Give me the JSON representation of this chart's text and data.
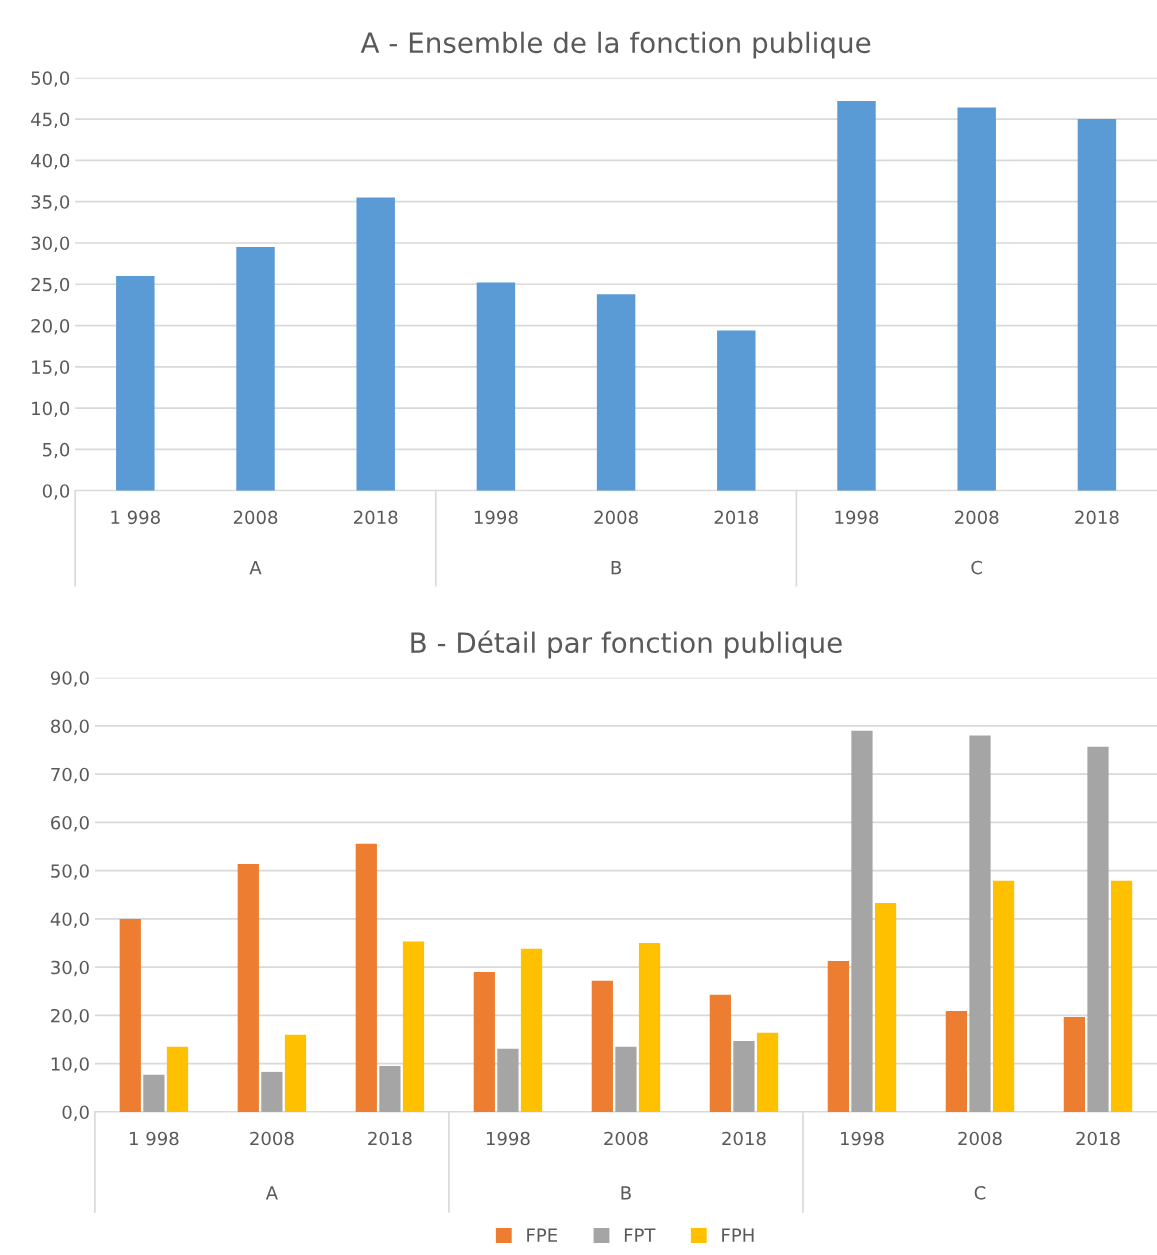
{
  "chart_data": [
    {
      "type": "bar",
      "title": "A - Ensemble de la fonction publique",
      "categories": [
        "1 998",
        "2008",
        "2018",
        "1998",
        "2008",
        "2018",
        "1998",
        "2008",
        "2018"
      ],
      "annotations": [
        "A",
        "B",
        "C"
      ],
      "values": [
        26.0,
        29.5,
        35.5,
        25.2,
        23.8,
        19.4,
        47.2,
        46.4,
        45.0
      ],
      "color": "#5b9bd5",
      "ylim": [
        0,
        50
      ],
      "yticks": [
        {
          "value": 0,
          "label": "0,0"
        },
        {
          "value": 5,
          "label": "5,0"
        },
        {
          "value": 10,
          "label": "10,0"
        },
        {
          "value": 15,
          "label": "15,0"
        },
        {
          "value": 20,
          "label": "20,0"
        },
        {
          "value": 25,
          "label": "25,0"
        },
        {
          "value": 30,
          "label": "30,0"
        },
        {
          "value": 35,
          "label": "35,0"
        },
        {
          "value": 40,
          "label": "40,0"
        },
        {
          "value": 45,
          "label": "45,0"
        },
        {
          "value": 50,
          "label": "50,0"
        }
      ],
      "grid": "y",
      "legend": false
    },
    {
      "type": "bar",
      "title": "B - Détail par fonction publique",
      "categories": [
        "1 998",
        "2008",
        "2018",
        "1998",
        "2008",
        "2018",
        "1998",
        "2008",
        "2018"
      ],
      "annotations": [
        "A",
        "B",
        "C"
      ],
      "series": [
        {
          "name": "FPE",
          "color": "#ed7d31",
          "values": [
            40.0,
            51.4,
            55.6,
            29.0,
            27.2,
            24.3,
            31.3,
            20.9,
            19.7
          ]
        },
        {
          "name": "FPT",
          "color": "#a5a5a5",
          "values": [
            7.7,
            8.3,
            9.5,
            13.1,
            13.5,
            14.7,
            79.0,
            78.0,
            75.7
          ]
        },
        {
          "name": "FPH",
          "color": "#ffc000",
          "values": [
            13.5,
            16.0,
            35.3,
            33.8,
            35.0,
            16.4,
            43.3,
            47.9,
            47.9
          ]
        }
      ],
      "ylim": [
        0,
        90
      ],
      "yticks": [
        {
          "value": 0,
          "label": "0,0"
        },
        {
          "value": 10,
          "label": "10,0"
        },
        {
          "value": 20,
          "label": "20,0"
        },
        {
          "value": 30,
          "label": "30,0"
        },
        {
          "value": 40,
          "label": "40,0"
        },
        {
          "value": 50,
          "label": "50,0"
        },
        {
          "value": 60,
          "label": "60,0"
        },
        {
          "value": 70,
          "label": "70,0"
        },
        {
          "value": 80,
          "label": "80,0"
        },
        {
          "value": 90,
          "label": "90,0"
        }
      ],
      "grid": "y",
      "legend": "bottom"
    }
  ]
}
